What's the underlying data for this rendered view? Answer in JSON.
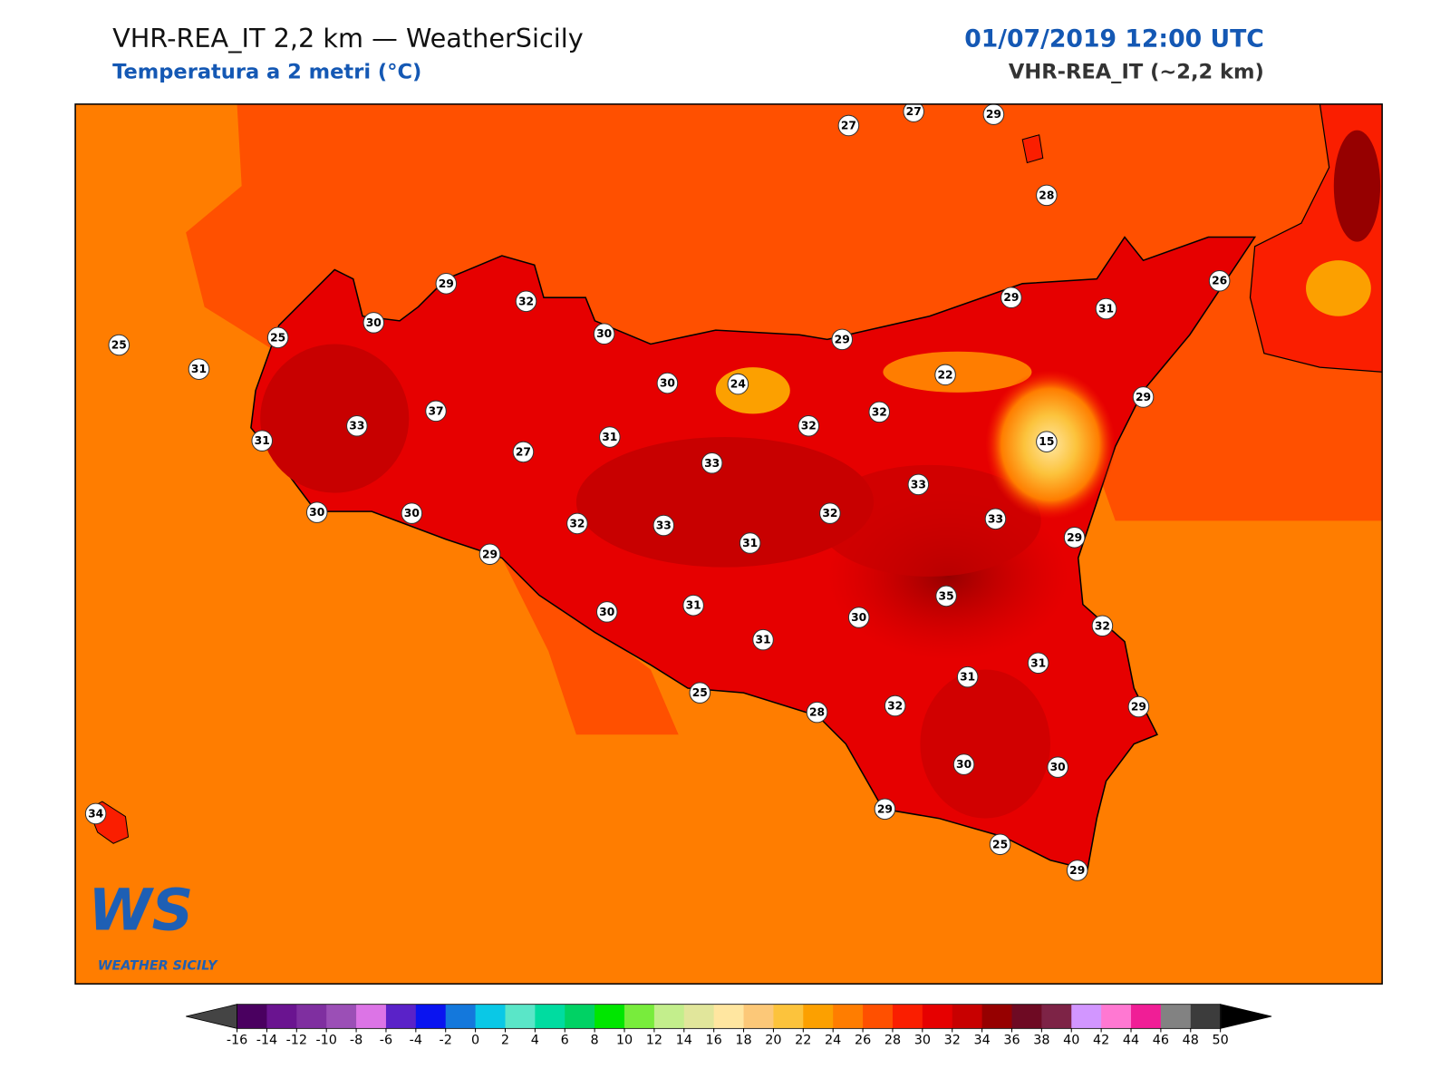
{
  "header": {
    "title": "VHR-REA_IT 2,2 km — WeatherSicily",
    "subtitle": "Temperatura a 2 metri (°C)",
    "datetime": "01/07/2019 12:00 UTC",
    "model": "VHR-REA_IT (~2,2 km)"
  },
  "logo": {
    "mark": "WS",
    "name": "WEATHER SICILY"
  },
  "stations": [
    27,
    27,
    29,
    28,
    29,
    32,
    30,
    30,
    25,
    25,
    31,
    37,
    33,
    31,
    24,
    30,
    31,
    27,
    30,
    30,
    33,
    32,
    33,
    31,
    32,
    32,
    29,
    29,
    31,
    26,
    22,
    29,
    15,
    33,
    32,
    33,
    29,
    29,
    30,
    31,
    31,
    30,
    35,
    32,
    31,
    31,
    32,
    25,
    28,
    29,
    30,
    30,
    29,
    25,
    29,
    34
  ],
  "colorbar": {
    "ticks": [
      -16,
      -14,
      -12,
      -10,
      -8,
      -6,
      -4,
      -2,
      0,
      2,
      4,
      6,
      8,
      10,
      12,
      14,
      16,
      18,
      20,
      22,
      24,
      26,
      28,
      30,
      32,
      34,
      36,
      38,
      40,
      42,
      44,
      46,
      48,
      50
    ],
    "colors": [
      "#4a0060",
      "#6a1490",
      "#7f2fa0",
      "#9b4fb6",
      "#dc74e6",
      "#5a22c8",
      "#0a14f0",
      "#1478dc",
      "#0ac8e6",
      "#5ae6c8",
      "#00dca0",
      "#00d264",
      "#00e600",
      "#78ec3c",
      "#c3ee8c",
      "#e1e69b",
      "#ffe6a0",
      "#fcc878",
      "#fcc33c",
      "#fca000",
      "#ff7d00",
      "#ff5000",
      "#fa1e00",
      "#e60000",
      "#c80000",
      "#960000",
      "#6e0a23",
      "#7d2346",
      "#d296ff",
      "#ff78d2",
      "#f01e96",
      "#828282",
      "#3c3c3c"
    ],
    "under_color": "#444444",
    "over_color": "#000000"
  }
}
